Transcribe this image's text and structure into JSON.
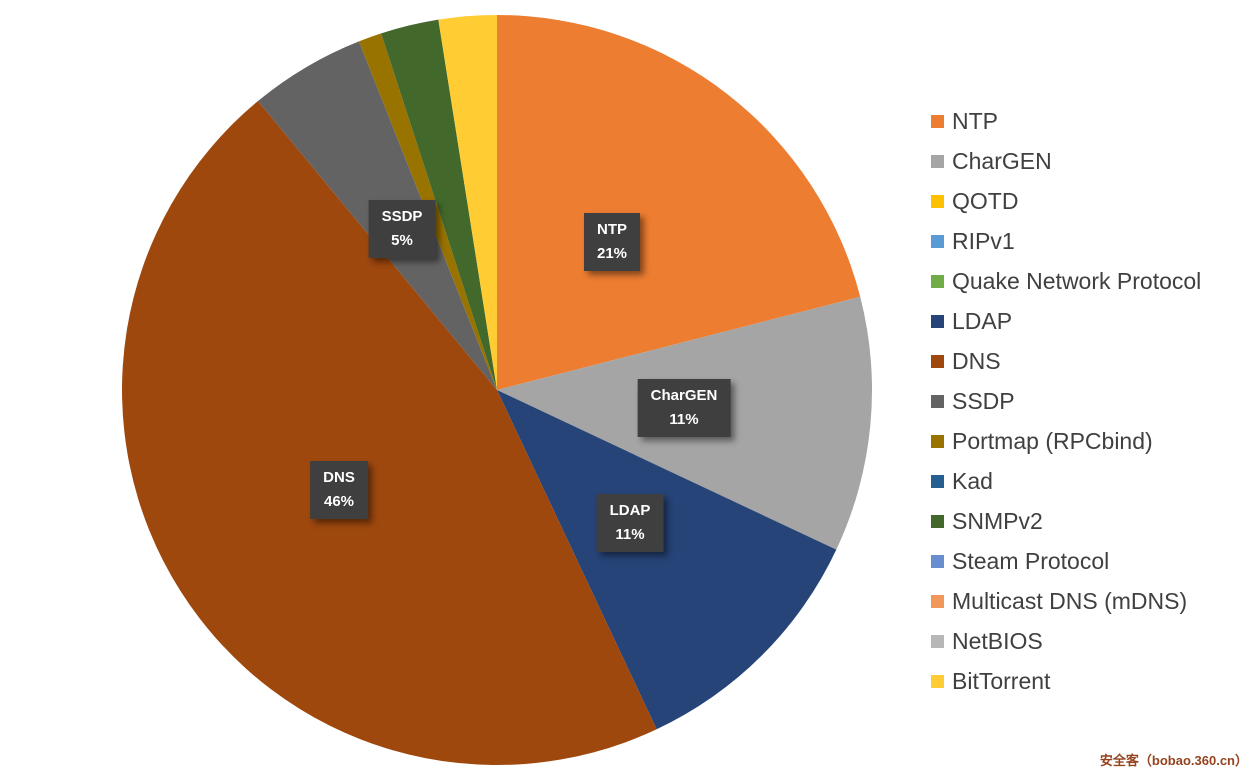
{
  "watermark": "安全客（bobao.360.cn）",
  "chart_data": {
    "type": "pie",
    "title": "",
    "legend_position": "right",
    "start_angle_deg": 0,
    "direction": "clockwise",
    "total": 100,
    "series": [
      {
        "label": "NTP",
        "value": 21,
        "color": "#ED7D31",
        "pct_label": "21%",
        "show_label": true
      },
      {
        "label": "CharGEN",
        "value": 11,
        "color": "#A5A5A5",
        "pct_label": "11%",
        "show_label": true
      },
      {
        "label": "QOTD",
        "value": 0,
        "color": "#FFC000"
      },
      {
        "label": "RIPv1",
        "value": 0,
        "color": "#5B9BD5"
      },
      {
        "label": "Quake Network Protocol",
        "value": 0,
        "color": "#70AD47"
      },
      {
        "label": "LDAP",
        "value": 11,
        "color": "#264478",
        "pct_label": "11%",
        "show_label": true
      },
      {
        "label": "DNS",
        "value": 46,
        "color": "#9E480E",
        "pct_label": "46%",
        "show_label": true
      },
      {
        "label": "SSDP",
        "value": 5,
        "color": "#636363",
        "pct_label": "5%",
        "show_label": true
      },
      {
        "label": "Portmap (RPCbind)",
        "value": 1,
        "color": "#997300"
      },
      {
        "label": "Kad",
        "value": 0,
        "color": "#255E91"
      },
      {
        "label": "SNMPv2",
        "value": 2.5,
        "color": "#43682B"
      },
      {
        "label": "Steam Protocol",
        "value": 0,
        "color": "#698ED0"
      },
      {
        "label": "Multicast DNS (mDNS)",
        "value": 0,
        "color": "#F1975A"
      },
      {
        "label": "NetBIOS",
        "value": 0,
        "color": "#B7B7B7"
      },
      {
        "label": "BitTorrent",
        "value": 2.5,
        "color": "#FFCD33"
      }
    ]
  }
}
